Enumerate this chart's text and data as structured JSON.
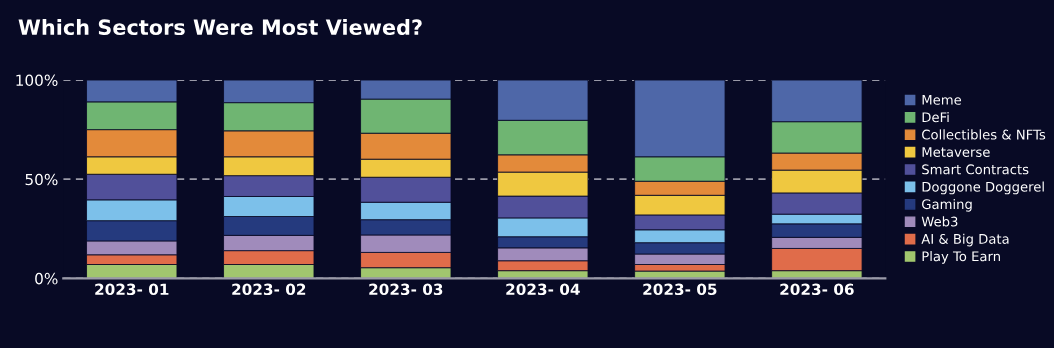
{
  "chart_data": {
    "type": "bar",
    "title": "Which Sectors Were Most Viewed?",
    "stacked": true,
    "categories": [
      "2023- 01",
      "2023- 02",
      "2023- 03",
      "2023- 04",
      "2023- 05",
      "2023- 06"
    ],
    "series": [
      {
        "name": "Play To Earn",
        "color": "#a1c66e",
        "values": [
          7.0,
          7.0,
          5.4,
          3.9,
          3.7,
          3.9
        ]
      },
      {
        "name": "AI & Big Data",
        "color": "#e06c4a",
        "values": [
          4.9,
          7.0,
          7.7,
          5.0,
          3.3,
          11.2
        ]
      },
      {
        "name": "Web3",
        "color": "#a08bbb",
        "values": [
          7.0,
          7.7,
          8.8,
          6.5,
          5.3,
          5.6
        ]
      },
      {
        "name": "Gaming",
        "color": "#253a7e",
        "values": [
          10.2,
          9.5,
          7.7,
          5.6,
          5.7,
          6.8
        ]
      },
      {
        "name": "Doggone Doggerel",
        "color": "#7cc0ea",
        "values": [
          10.5,
          10.1,
          8.8,
          9.5,
          6.5,
          4.9
        ]
      },
      {
        "name": "Smart Contracts",
        "color": "#51509a",
        "values": [
          12.9,
          10.5,
          12.6,
          11.0,
          7.5,
          10.7
        ]
      },
      {
        "name": "Metaverse",
        "color": "#efc840",
        "values": [
          8.8,
          9.5,
          9.1,
          12.1,
          9.9,
          11.5
        ]
      },
      {
        "name": "Collectibles & NFTs",
        "color": "#e38a3a",
        "values": [
          13.7,
          13.1,
          13.1,
          8.7,
          7.1,
          8.6
        ]
      },
      {
        "name": "DeFi",
        "color": "#6fb572",
        "values": [
          14.0,
          14.2,
          17.2,
          17.4,
          12.3,
          15.8
        ]
      },
      {
        "name": "Meme",
        "color": "#4e67a8",
        "values": [
          11.0,
          11.4,
          9.6,
          20.3,
          38.7,
          21.0
        ]
      }
    ],
    "ylim": [
      0,
      100
    ],
    "yticks": [
      {
        "value": 0,
        "label": "0%"
      },
      {
        "value": 50,
        "label": "50%"
      },
      {
        "value": 100,
        "label": "100%"
      }
    ],
    "grid": "y",
    "legend": "right"
  }
}
